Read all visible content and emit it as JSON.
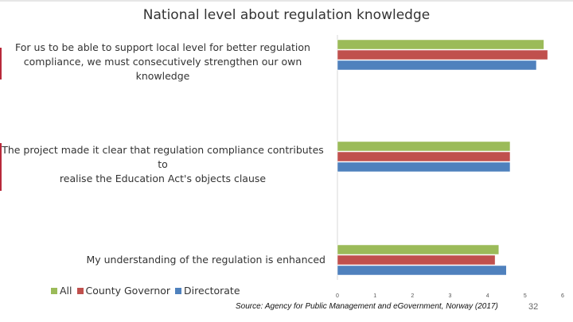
{
  "slide": {
    "title": "National level about regulation knowledge",
    "source": "Source: Agency for Public Management and eGovernment, Norway (2017)",
    "page_number": "32"
  },
  "chart_data": {
    "type": "bar",
    "orientation": "horizontal",
    "categories": [
      "For us to be able to support local level for better regulation compliance, we must consecutively strengthen our own knowledge",
      "The project made it clear that regulation compliance contributes to realise the Education Act's objects clause",
      "My understanding of the regulation is enhanced"
    ],
    "category_lines": [
      [
        "For us to be able to support local level for better regulation",
        "compliance, we must consecutively strengthen our own knowledge"
      ],
      [
        "The project made it clear that regulation compliance contributes to",
        "realise the Education Act's objects clause"
      ],
      [
        "My understanding of the regulation is enhanced"
      ]
    ],
    "series": [
      {
        "name": "All",
        "color": "#9bbb59",
        "values": [
          5.5,
          4.6,
          4.3
        ]
      },
      {
        "name": "County Governor",
        "color": "#c0504d",
        "values": [
          5.6,
          4.6,
          4.2
        ]
      },
      {
        "name": "Directorate",
        "color": "#4f81bd",
        "values": [
          5.3,
          4.6,
          4.5
        ]
      }
    ],
    "xlim": [
      0,
      6
    ],
    "ticks": [
      "0",
      "1",
      "2",
      "3",
      "4",
      "5",
      "6"
    ],
    "legend_position": "bottom-left",
    "grid": false
  }
}
